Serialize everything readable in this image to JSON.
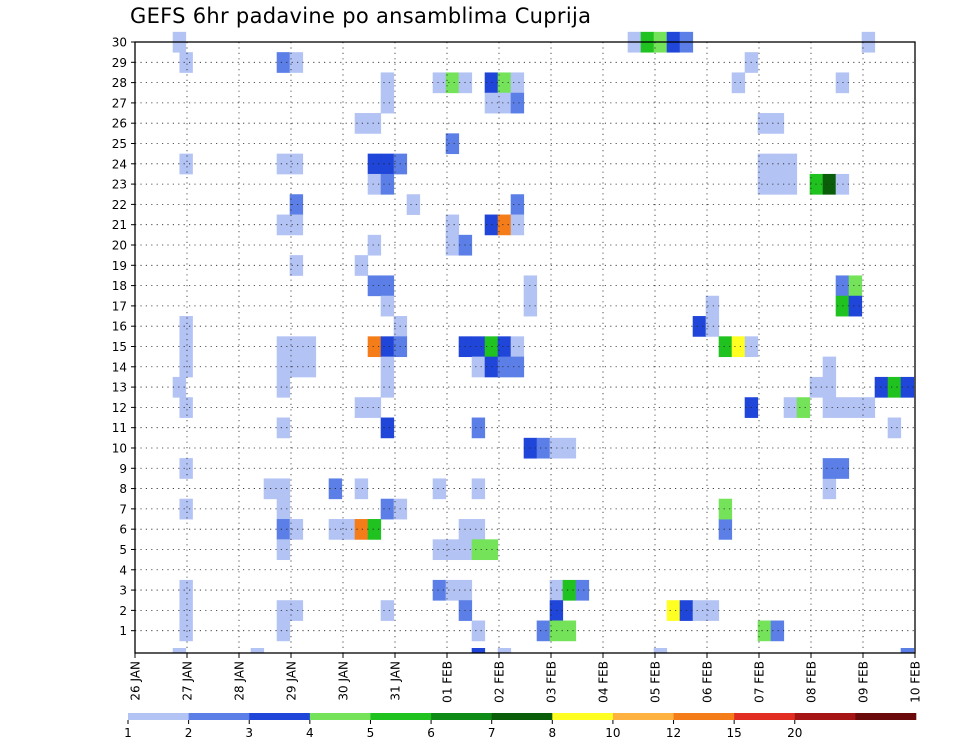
{
  "title": "GEFS 6hr padavine po ansamblima Cuprija",
  "chart_data": {
    "type": "heatmap",
    "title": "GEFS 6hr padavine po ansamblima Cuprija",
    "x_ticks": [
      "26 JAN",
      "27 JAN",
      "28 JAN",
      "29 JAN",
      "30 JAN",
      "31 JAN",
      "01 FEB",
      "02 FEB",
      "03 FEB",
      "04 FEB",
      "05 FEB",
      "06 FEB",
      "07 FEB",
      "08 FEB",
      "09 FEB",
      "10 FEB"
    ],
    "y_ticks": [
      "1",
      "2",
      "3",
      "4",
      "5",
      "6",
      "7",
      "8",
      "9",
      "10",
      "11",
      "12",
      "13",
      "14",
      "15",
      "16",
      "17",
      "18",
      "19",
      "20",
      "21",
      "22",
      "23",
      "24",
      "25",
      "26",
      "27",
      "28",
      "29",
      "30"
    ],
    "xlim_days": [
      0,
      15
    ],
    "ylim": [
      0,
      30
    ],
    "grid": true,
    "colorbar": {
      "levels": [
        "1",
        "2",
        "3",
        "4",
        "5",
        "6",
        "7",
        "8",
        "10",
        "12",
        "15",
        "20"
      ],
      "colors": [
        "#b3c3f4",
        "#5b7fe6",
        "#1f45d9",
        "#74e35a",
        "#1fc21f",
        "#0e8a16",
        "#0a5e0a",
        "#ffff22",
        "#ffb23f",
        "#f47d1a",
        "#e22d22",
        "#a51515",
        "#6b0a0a"
      ]
    },
    "cells": [
      [
        0.85,
        30,
        0
      ],
      [
        0.98,
        29,
        0
      ],
      [
        0.98,
        24,
        0
      ],
      [
        0.98,
        16,
        0
      ],
      [
        0.98,
        15,
        0
      ],
      [
        0.98,
        14,
        0
      ],
      [
        0.85,
        13,
        0
      ],
      [
        0.98,
        12,
        0
      ],
      [
        0.98,
        9,
        0
      ],
      [
        0.98,
        7,
        0
      ],
      [
        0.98,
        3,
        0
      ],
      [
        0.98,
        2,
        0
      ],
      [
        0.98,
        1,
        0
      ],
      [
        0.85,
        0,
        0
      ],
      [
        2.35,
        0,
        0
      ],
      [
        2.85,
        29,
        1
      ],
      [
        3.1,
        29,
        0
      ],
      [
        2.85,
        24,
        0
      ],
      [
        3.1,
        24,
        0
      ],
      [
        3.1,
        22,
        1
      ],
      [
        2.85,
        21,
        0
      ],
      [
        3.1,
        21,
        0
      ],
      [
        3.1,
        19,
        0
      ],
      [
        2.85,
        15,
        0
      ],
      [
        3.1,
        15,
        0
      ],
      [
        3.35,
        15,
        0
      ],
      [
        2.85,
        14,
        0
      ],
      [
        3.1,
        14,
        0
      ],
      [
        3.35,
        14,
        0
      ],
      [
        2.85,
        13,
        0
      ],
      [
        2.85,
        11,
        0
      ],
      [
        2.6,
        8,
        0
      ],
      [
        2.85,
        8,
        0
      ],
      [
        2.85,
        7,
        0
      ],
      [
        2.85,
        6,
        1
      ],
      [
        3.1,
        6,
        0
      ],
      [
        2.85,
        5,
        0
      ],
      [
        2.85,
        2,
        0
      ],
      [
        3.1,
        2,
        0
      ],
      [
        2.85,
        1,
        0
      ],
      [
        4.85,
        27,
        0
      ],
      [
        4.85,
        28,
        0
      ],
      [
        4.35,
        26,
        0
      ],
      [
        4.6,
        26,
        0
      ],
      [
        4.6,
        24,
        2
      ],
      [
        4.85,
        24,
        2
      ],
      [
        5.1,
        24,
        1
      ],
      [
        4.6,
        23,
        0
      ],
      [
        4.85,
        23,
        1
      ],
      [
        5.35,
        22,
        0
      ],
      [
        4.6,
        20,
        0
      ],
      [
        4.35,
        19,
        0
      ],
      [
        4.6,
        18,
        1
      ],
      [
        4.85,
        18,
        1
      ],
      [
        4.85,
        17,
        0
      ],
      [
        5.1,
        16,
        0
      ],
      [
        4.6,
        15,
        9
      ],
      [
        4.85,
        15,
        2
      ],
      [
        5.1,
        15,
        1
      ],
      [
        4.85,
        14,
        0
      ],
      [
        4.85,
        13,
        0
      ],
      [
        4.35,
        12,
        0
      ],
      [
        4.6,
        12,
        0
      ],
      [
        4.85,
        11,
        2
      ],
      [
        3.85,
        8,
        1
      ],
      [
        4.35,
        8,
        0
      ],
      [
        4.85,
        7,
        1
      ],
      [
        5.1,
        7,
        0
      ],
      [
        3.85,
        6,
        0
      ],
      [
        4.1,
        6,
        0
      ],
      [
        4.35,
        6,
        9
      ],
      [
        4.6,
        6,
        4
      ],
      [
        4.85,
        2,
        0
      ],
      [
        5.85,
        28,
        0
      ],
      [
        6.1,
        28,
        3
      ],
      [
        6.35,
        28,
        0
      ],
      [
        6.1,
        25,
        1
      ],
      [
        6.1,
        21,
        0
      ],
      [
        6.1,
        20,
        0
      ],
      [
        6.35,
        20,
        1
      ],
      [
        6.35,
        15,
        2
      ],
      [
        6.6,
        15,
        2
      ],
      [
        6.85,
        15,
        4
      ],
      [
        7.1,
        15,
        2
      ],
      [
        7.35,
        15,
        0
      ],
      [
        6.6,
        14,
        0
      ],
      [
        6.85,
        14,
        2
      ],
      [
        7.1,
        14,
        1
      ],
      [
        7.35,
        14,
        1
      ],
      [
        6.6,
        11,
        1
      ],
      [
        5.85,
        8,
        0
      ],
      [
        6.6,
        8,
        0
      ],
      [
        6.35,
        6,
        0
      ],
      [
        6.6,
        6,
        0
      ],
      [
        5.85,
        5,
        0
      ],
      [
        6.1,
        5,
        0
      ],
      [
        6.35,
        5,
        0
      ],
      [
        6.6,
        5,
        3
      ],
      [
        6.85,
        5,
        3
      ],
      [
        5.85,
        3,
        1
      ],
      [
        6.1,
        3,
        0
      ],
      [
        6.35,
        3,
        0
      ],
      [
        6.35,
        2,
        1
      ],
      [
        6.6,
        1,
        0
      ],
      [
        6.6,
        0,
        2
      ],
      [
        7.1,
        0,
        0
      ],
      [
        6.85,
        28,
        2
      ],
      [
        7.1,
        28,
        3
      ],
      [
        7.35,
        28,
        0
      ],
      [
        6.85,
        27,
        0
      ],
      [
        7.1,
        27,
        0
      ],
      [
        7.35,
        27,
        1
      ],
      [
        7.35,
        22,
        1
      ],
      [
        6.85,
        21,
        2
      ],
      [
        7.1,
        21,
        9
      ],
      [
        7.35,
        21,
        0
      ],
      [
        7.6,
        18,
        0
      ],
      [
        7.6,
        17,
        0
      ],
      [
        7.6,
        10,
        2
      ],
      [
        7.85,
        10,
        1
      ],
      [
        8.1,
        10,
        0
      ],
      [
        8.35,
        10,
        0
      ],
      [
        8.1,
        3,
        0
      ],
      [
        8.35,
        3,
        4
      ],
      [
        8.6,
        3,
        1
      ],
      [
        8.1,
        2,
        2
      ],
      [
        7.85,
        1,
        1
      ],
      [
        8.1,
        1,
        3
      ],
      [
        8.35,
        1,
        3
      ],
      [
        9.6,
        30,
        0
      ],
      [
        9.85,
        30,
        4
      ],
      [
        10.1,
        30,
        3
      ],
      [
        10.35,
        30,
        2
      ],
      [
        10.6,
        30,
        1
      ],
      [
        10.85,
        16,
        2
      ],
      [
        11.1,
        16,
        0
      ],
      [
        11.1,
        17,
        0
      ],
      [
        11.35,
        15,
        4
      ],
      [
        11.6,
        15,
        7
      ],
      [
        11.85,
        15,
        0
      ],
      [
        10.35,
        2,
        7
      ],
      [
        10.6,
        2,
        2
      ],
      [
        10.85,
        2,
        0
      ],
      [
        11.1,
        2,
        0
      ],
      [
        11.35,
        6,
        1
      ],
      [
        11.35,
        7,
        3
      ],
      [
        10.1,
        0,
        0
      ],
      [
        11.85,
        29,
        0
      ],
      [
        11.6,
        28,
        0
      ],
      [
        12.1,
        26,
        0
      ],
      [
        12.35,
        26,
        0
      ],
      [
        12.1,
        24,
        0
      ],
      [
        12.35,
        24,
        0
      ],
      [
        12.6,
        24,
        0
      ],
      [
        12.1,
        23,
        0
      ],
      [
        12.35,
        23,
        0
      ],
      [
        12.6,
        23,
        0
      ],
      [
        13.1,
        23,
        4
      ],
      [
        13.35,
        23,
        6
      ],
      [
        13.6,
        23,
        0
      ],
      [
        11.85,
        12,
        2
      ],
      [
        12.6,
        12,
        0
      ],
      [
        12.85,
        12,
        3
      ],
      [
        13.35,
        8,
        0
      ],
      [
        12.1,
        1,
        3
      ],
      [
        12.35,
        1,
        1
      ],
      [
        13.6,
        28,
        0
      ],
      [
        13.6,
        18,
        1
      ],
      [
        13.85,
        18,
        3
      ],
      [
        13.6,
        17,
        4
      ],
      [
        13.85,
        17,
        2
      ],
      [
        13.35,
        14,
        0
      ],
      [
        13.1,
        13,
        0
      ],
      [
        13.35,
        13,
        0
      ],
      [
        13.35,
        12,
        0
      ],
      [
        13.6,
        12,
        0
      ],
      [
        13.85,
        12,
        0
      ],
      [
        14.1,
        12,
        0
      ],
      [
        14.35,
        13,
        2
      ],
      [
        14.6,
        13,
        4
      ],
      [
        14.85,
        13,
        2
      ],
      [
        14.6,
        11,
        0
      ],
      [
        13.35,
        9,
        1
      ],
      [
        13.6,
        9,
        1
      ],
      [
        14.85,
        0,
        1
      ],
      [
        14.1,
        30,
        0
      ]
    ]
  }
}
